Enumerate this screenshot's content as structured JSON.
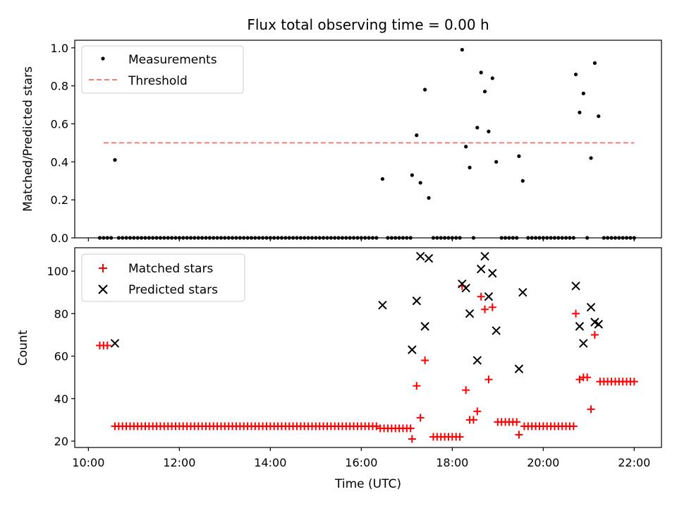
{
  "title": "Flux total observing time = 0.00 h",
  "chart_data": [
    {
      "type": "scatter",
      "name": "top-panel",
      "ylabel": "Matched/Predicted stars",
      "xlabel": "",
      "xlim_hours": [
        9.7,
        22.6
      ],
      "ylim": [
        0,
        1.04
      ],
      "yticks": [
        0.0,
        0.2,
        0.4,
        0.6,
        0.8,
        1.0
      ],
      "ytick_labels": [
        "0.0",
        "0.2",
        "0.4",
        "0.6",
        "0.8",
        "1.0"
      ],
      "legend_position": "top-left",
      "threshold": {
        "name": "Threshold",
        "x": [
          "10:20",
          "22:00"
        ],
        "y": 0.5,
        "color": "#f08080"
      },
      "measurements": {
        "name": "Measurements",
        "color": "#000000",
        "zero_runs": [
          {
            "start": "10:20",
            "end": "10:30",
            "step_min": 5
          },
          {
            "start": "10:40",
            "end": "16:20",
            "step_min": 5
          },
          {
            "start": "16:35",
            "end": "17:05",
            "step_min": 5
          },
          {
            "start": "17:35",
            "end": "18:10",
            "step_min": 5
          },
          {
            "start": "19:05",
            "end": "19:25",
            "step_min": 5
          },
          {
            "start": "19:40",
            "end": "20:40",
            "step_min": 5
          },
          {
            "start": "21:20",
            "end": "22:00",
            "step_min": 5
          }
        ],
        "points": [
          {
            "x": "10:15",
            "y": 0.0
          },
          {
            "x": "10:35",
            "y": 0.41
          },
          {
            "x": "16:28",
            "y": 0.31
          },
          {
            "x": "17:07",
            "y": 0.33
          },
          {
            "x": "17:13",
            "y": 0.54
          },
          {
            "x": "17:18",
            "y": 0.29
          },
          {
            "x": "17:24",
            "y": 0.78
          },
          {
            "x": "17:29",
            "y": 0.21
          },
          {
            "x": "18:13",
            "y": 0.99
          },
          {
            "x": "18:18",
            "y": 0.48
          },
          {
            "x": "18:23",
            "y": 0.37
          },
          {
            "x": "18:28",
            "y": 0.0
          },
          {
            "x": "18:33",
            "y": 0.58
          },
          {
            "x": "18:38",
            "y": 0.87
          },
          {
            "x": "18:43",
            "y": 0.77
          },
          {
            "x": "18:48",
            "y": 0.56
          },
          {
            "x": "18:53",
            "y": 0.84
          },
          {
            "x": "18:58",
            "y": 0.4
          },
          {
            "x": "19:28",
            "y": 0.43
          },
          {
            "x": "19:33",
            "y": 0.3
          },
          {
            "x": "20:43",
            "y": 0.86
          },
          {
            "x": "20:48",
            "y": 0.66
          },
          {
            "x": "20:53",
            "y": 0.76
          },
          {
            "x": "20:58",
            "y": 0.0
          },
          {
            "x": "21:03",
            "y": 0.42
          },
          {
            "x": "21:08",
            "y": 0.92
          },
          {
            "x": "21:13",
            "y": 0.64
          }
        ]
      }
    },
    {
      "type": "scatter",
      "name": "bottom-panel",
      "ylabel": "Count",
      "xlabel": "Time (UTC)",
      "xlim_hours": [
        9.7,
        22.6
      ],
      "ylim": [
        17,
        111
      ],
      "yticks": [
        20,
        40,
        60,
        80,
        100
      ],
      "ytick_labels": [
        "20",
        "40",
        "60",
        "80",
        "100"
      ],
      "xticks": [
        "10:00",
        "12:00",
        "14:00",
        "16:00",
        "18:00",
        "20:00",
        "22:00"
      ],
      "xtick_labels": [
        "10:00",
        "12:00",
        "14:00",
        "16:00",
        "18:00",
        "20:00",
        "22:00"
      ],
      "legend_position": "top-left",
      "matched": {
        "name": "Matched stars",
        "color": "#ff0000",
        "runs": [
          {
            "start": "10:35",
            "end": "16:20",
            "step_min": 5,
            "y": 27
          },
          {
            "start": "16:25",
            "end": "17:05",
            "step_min": 5,
            "y": 26
          },
          {
            "start": "17:35",
            "end": "18:10",
            "step_min": 5,
            "y": 22
          },
          {
            "start": "19:00",
            "end": "19:25",
            "step_min": 5,
            "y": 29
          },
          {
            "start": "19:35",
            "end": "20:40",
            "step_min": 5,
            "y": 27
          },
          {
            "start": "21:15",
            "end": "22:00",
            "step_min": 5,
            "y": 48
          }
        ],
        "points": [
          {
            "x": "10:15",
            "y": 65
          },
          {
            "x": "10:20",
            "y": 65
          },
          {
            "x": "10:25",
            "y": 65
          },
          {
            "x": "17:07",
            "y": 21
          },
          {
            "x": "17:13",
            "y": 46
          },
          {
            "x": "17:18",
            "y": 31
          },
          {
            "x": "17:24",
            "y": 58
          },
          {
            "x": "18:13",
            "y": 93
          },
          {
            "x": "18:18",
            "y": 44
          },
          {
            "x": "18:23",
            "y": 30
          },
          {
            "x": "18:28",
            "y": 30
          },
          {
            "x": "18:33",
            "y": 34
          },
          {
            "x": "18:38",
            "y": 88
          },
          {
            "x": "18:43",
            "y": 82
          },
          {
            "x": "18:48",
            "y": 49
          },
          {
            "x": "18:53",
            "y": 83
          },
          {
            "x": "19:28",
            "y": 23
          },
          {
            "x": "20:43",
            "y": 80
          },
          {
            "x": "20:48",
            "y": 49
          },
          {
            "x": "20:53",
            "y": 50
          },
          {
            "x": "20:58",
            "y": 50
          },
          {
            "x": "21:03",
            "y": 35
          },
          {
            "x": "21:08",
            "y": 70
          }
        ]
      },
      "predicted": {
        "name": "Predicted stars",
        "color": "#000000",
        "points": [
          {
            "x": "10:35",
            "y": 66
          },
          {
            "x": "16:28",
            "y": 84
          },
          {
            "x": "17:07",
            "y": 63
          },
          {
            "x": "17:13",
            "y": 86
          },
          {
            "x": "17:18",
            "y": 107
          },
          {
            "x": "17:24",
            "y": 74
          },
          {
            "x": "17:29",
            "y": 106
          },
          {
            "x": "18:13",
            "y": 94
          },
          {
            "x": "18:18",
            "y": 92
          },
          {
            "x": "18:23",
            "y": 80
          },
          {
            "x": "18:33",
            "y": 58
          },
          {
            "x": "18:38",
            "y": 101
          },
          {
            "x": "18:43",
            "y": 107
          },
          {
            "x": "18:48",
            "y": 88
          },
          {
            "x": "18:53",
            "y": 99
          },
          {
            "x": "18:58",
            "y": 72
          },
          {
            "x": "19:28",
            "y": 54
          },
          {
            "x": "19:33",
            "y": 90
          },
          {
            "x": "20:43",
            "y": 93
          },
          {
            "x": "20:48",
            "y": 74
          },
          {
            "x": "20:53",
            "y": 66
          },
          {
            "x": "21:03",
            "y": 83
          },
          {
            "x": "21:08",
            "y": 76
          },
          {
            "x": "21:13",
            "y": 75
          }
        ]
      }
    }
  ]
}
